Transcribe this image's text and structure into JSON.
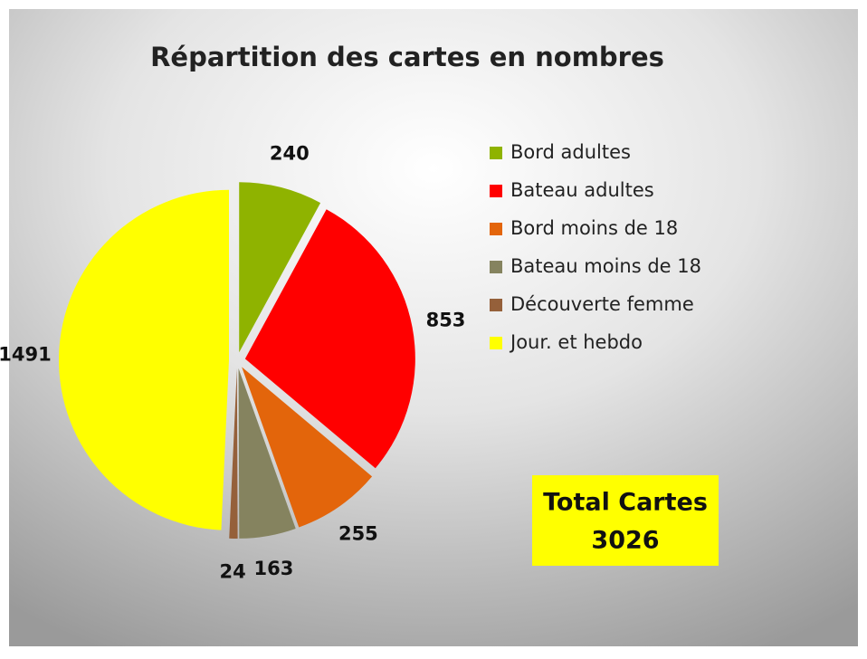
{
  "chart_data": {
    "type": "pie",
    "title": "Répartition  des cartes en nombres",
    "categories": [
      "Bord adultes",
      "Bateau adultes",
      "Bord moins de 18",
      "Bateau moins de 18",
      "Découverte femme",
      "Jour. et hebdo"
    ],
    "values": [
      240,
      853,
      255,
      163,
      24,
      1491
    ],
    "colors": [
      "#8fb300",
      "#ff0000",
      "#e3650b",
      "#85835f",
      "#95603a",
      "#ffff00"
    ],
    "legend": "right",
    "total_label": "Total Cartes",
    "total": 3026
  }
}
